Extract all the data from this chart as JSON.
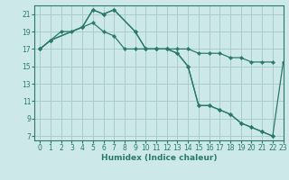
{
  "xlabel": "Humidex (Indice chaleur)",
  "background_color": "#cce8e8",
  "grid_color": "#aacccc",
  "line_color": "#2a7a6a",
  "xlim": [
    -0.5,
    23
  ],
  "ylim": [
    6.5,
    22
  ],
  "yticks": [
    7,
    9,
    11,
    13,
    15,
    17,
    19,
    21
  ],
  "xticks": [
    0,
    1,
    2,
    3,
    4,
    5,
    6,
    7,
    8,
    9,
    10,
    11,
    12,
    13,
    14,
    15,
    16,
    17,
    18,
    19,
    20,
    21,
    22,
    23
  ],
  "series1_x": [
    0,
    1,
    2,
    3,
    4,
    5,
    6,
    7,
    8,
    9,
    10,
    11,
    12,
    13,
    14,
    15,
    16,
    17,
    18,
    19,
    20,
    21,
    22
  ],
  "series1_y": [
    17,
    18,
    19,
    19,
    19.5,
    20,
    19,
    18.5,
    17,
    17,
    17,
    17,
    17,
    17,
    17,
    16.5,
    16.5,
    16.5,
    16,
    16,
    15.5,
    15.5,
    15.5
  ],
  "series2_x": [
    0,
    1,
    4,
    5,
    6,
    7,
    9,
    10,
    11,
    12,
    13,
    14,
    15,
    16,
    17,
    18,
    19,
    20,
    21,
    22
  ],
  "series2_y": [
    17,
    18,
    19.5,
    21.5,
    21,
    21.5,
    19,
    17,
    17,
    17,
    16.5,
    15,
    10.5,
    10.5,
    10,
    9.5,
    8.5,
    8,
    7.5,
    7
  ],
  "series3_x": [
    0,
    1,
    4,
    5,
    6,
    7,
    9,
    10,
    11,
    12,
    13,
    14,
    15,
    16,
    17,
    18,
    19,
    20,
    21,
    22,
    23
  ],
  "series3_y": [
    17,
    18,
    19.5,
    21.5,
    21,
    21.5,
    19,
    17,
    17,
    17,
    16.5,
    15,
    10.5,
    10.5,
    10,
    9.5,
    8.5,
    8,
    7.5,
    7,
    15.5
  ]
}
